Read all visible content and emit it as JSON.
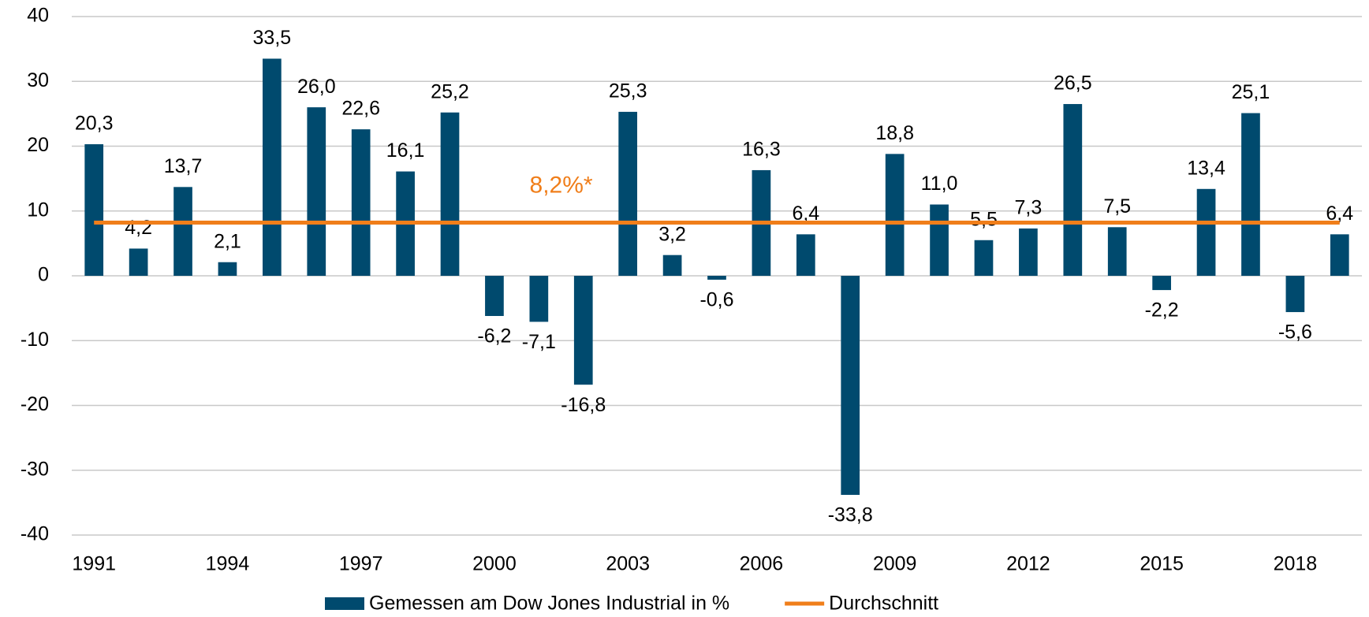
{
  "chart_data": {
    "type": "bar",
    "categories": [
      "1991",
      null,
      null,
      "1994",
      null,
      null,
      "1997",
      null,
      null,
      "2000",
      null,
      null,
      "2003",
      null,
      null,
      "2006",
      null,
      null,
      "2009",
      null,
      null,
      "2012",
      null,
      null,
      "2015",
      null,
      null,
      "2018",
      null
    ],
    "series": [
      {
        "name": "Gemessen am Dow Jones Industrial in %",
        "color": "#004a6e",
        "values": [
          20.3,
          4.2,
          13.7,
          2.1,
          33.5,
          26.0,
          22.6,
          16.1,
          25.2,
          -6.2,
          -7.1,
          -16.8,
          25.3,
          3.2,
          -0.6,
          16.3,
          6.4,
          -33.8,
          18.8,
          11.0,
          5.5,
          7.3,
          26.5,
          7.5,
          -2.2,
          13.4,
          25.1,
          -5.6,
          6.4
        ],
        "value_labels": [
          "20,3",
          "4,2",
          "13,7",
          "2,1",
          "33,5",
          "26,0",
          "22,6",
          "16,1",
          "25,2",
          "-6,2",
          "-7,1",
          "-16,8",
          "25,3",
          "3,2",
          "-0,6",
          "16,3",
          "6,4",
          "-33,8",
          "18,8",
          "11,0",
          "5,5",
          "7,3",
          "26,5",
          "7,5",
          "-2,2",
          "13,4",
          "25,1",
          "-5,6",
          "6,4"
        ]
      },
      {
        "name": "Durchschnitt",
        "type": "line",
        "color": "#f07e1a",
        "value": 8.2,
        "value_label": "8,2%*"
      }
    ],
    "ylim": [
      -40,
      40
    ],
    "yticks": [
      -40,
      -30,
      -20,
      -10,
      0,
      10,
      20,
      30,
      40
    ],
    "grid": true,
    "legend": "bottom"
  }
}
